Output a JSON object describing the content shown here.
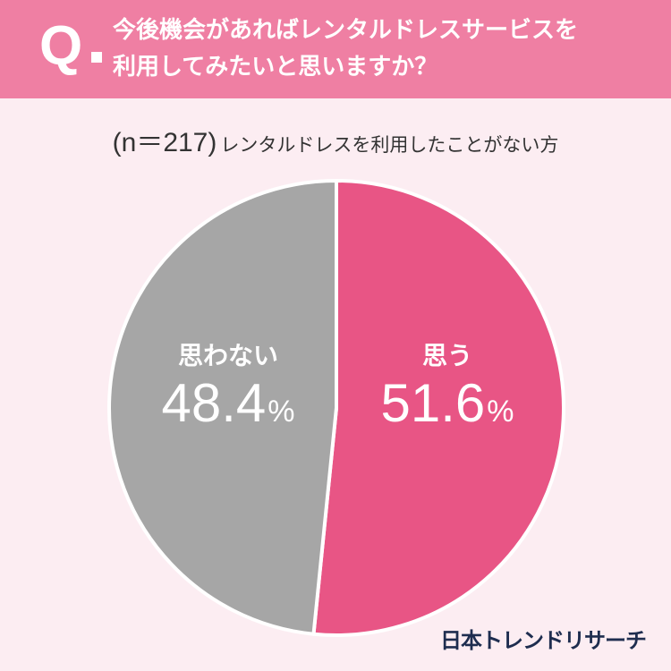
{
  "header": {
    "q_mark": "Q",
    "question_line1": "今後機会があればレンタルドレスサービスを",
    "question_line2": "利用してみたいと思いますか？"
  },
  "sample": {
    "n_label": "(n＝217)",
    "description": "レンタルドレスを利用したことがない方"
  },
  "brand": "日本トレンドリサーチ",
  "colors": {
    "header_bg": "#ef7fa3",
    "page_bg": "#fcedf2",
    "yes": "#e85585",
    "no": "#a6a6a6"
  },
  "chart_data": {
    "type": "pie",
    "unit": "%",
    "slices": [
      {
        "label": "思う",
        "value": 51.6,
        "value_text": "51.6",
        "color": "#e85585"
      },
      {
        "label": "思わない",
        "value": 48.4,
        "value_text": "48.4",
        "color": "#a6a6a6"
      }
    ]
  }
}
